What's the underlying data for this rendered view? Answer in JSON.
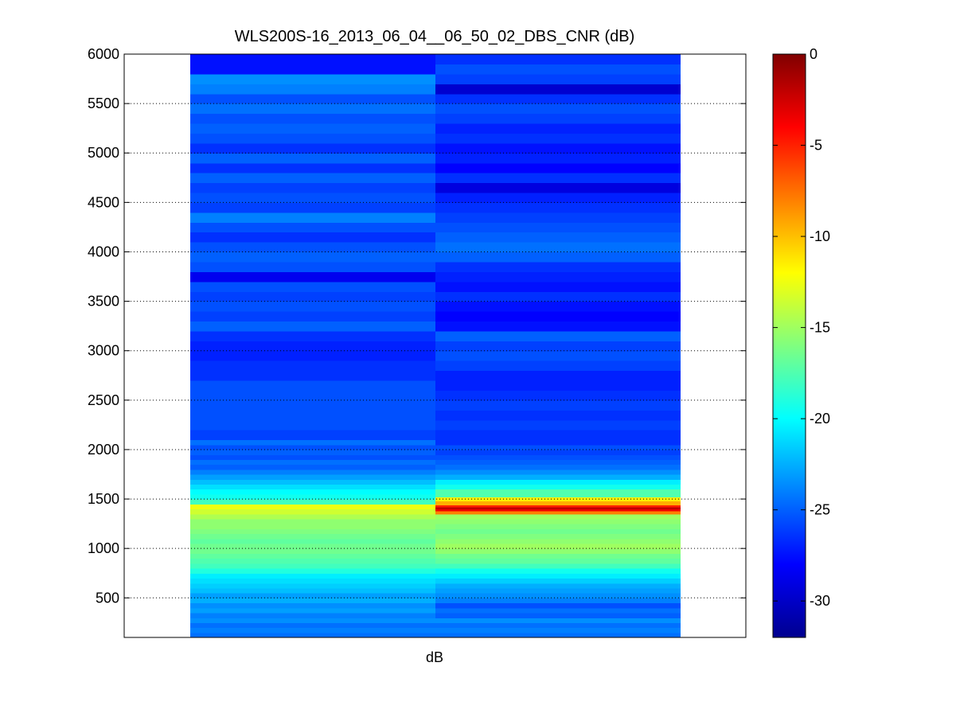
{
  "chart_data": {
    "type": "heatmap",
    "title": "WLS200S-16_2013_06_04__06_50_02_DBS_CNR (dB)",
    "xlabel": "dB",
    "ylabel": "",
    "ylim": [
      100,
      6000
    ],
    "yticks": [
      500,
      1000,
      1500,
      2000,
      2500,
      3000,
      3500,
      4000,
      4500,
      5000,
      5500,
      6000
    ],
    "grid": "horizontal dotted",
    "colormap": "jet",
    "colorbar": {
      "range": [
        -32,
        0
      ],
      "ticks": [
        0,
        -5,
        -10,
        -15,
        -20,
        -25,
        -30
      ],
      "placement": "right"
    },
    "columns": [
      {
        "cells": [
          [
            100,
            150,
            -24.5
          ],
          [
            150,
            200,
            -24.0
          ],
          [
            200,
            250,
            -24.5
          ],
          [
            250,
            300,
            -23.5
          ],
          [
            300,
            350,
            -24.0
          ],
          [
            350,
            400,
            -23.0
          ],
          [
            400,
            450,
            -23.5
          ],
          [
            450,
            500,
            -22.5
          ],
          [
            500,
            550,
            -23.0
          ],
          [
            550,
            600,
            -22.0
          ],
          [
            600,
            650,
            -21.5
          ],
          [
            650,
            700,
            -21.0
          ],
          [
            700,
            750,
            -20.5
          ],
          [
            750,
            800,
            -19.0
          ],
          [
            800,
            850,
            -18.0
          ],
          [
            850,
            900,
            -17.5
          ],
          [
            900,
            950,
            -17.0
          ],
          [
            950,
            1000,
            -16.5
          ],
          [
            1000,
            1050,
            -16.5
          ],
          [
            1050,
            1100,
            -17.0
          ],
          [
            1100,
            1150,
            -16.5
          ],
          [
            1150,
            1200,
            -16.0
          ],
          [
            1200,
            1250,
            -15.5
          ],
          [
            1250,
            1300,
            -15.5
          ],
          [
            1300,
            1350,
            -14.5
          ],
          [
            1350,
            1400,
            -13.5
          ],
          [
            1400,
            1450,
            -12.5
          ],
          [
            1450,
            1500,
            -18.0
          ],
          [
            1500,
            1550,
            -19.5
          ],
          [
            1550,
            1600,
            -20.0
          ],
          [
            1600,
            1650,
            -21.0
          ],
          [
            1650,
            1700,
            -22.0
          ],
          [
            1700,
            1750,
            -23.0
          ],
          [
            1750,
            1800,
            -24.0
          ],
          [
            1800,
            1850,
            -25.0
          ],
          [
            1850,
            1900,
            -24.5
          ],
          [
            1900,
            1950,
            -25.5
          ],
          [
            1950,
            2000,
            -25.0
          ],
          [
            2000,
            2050,
            -25.5
          ],
          [
            2050,
            2100,
            -24.5
          ],
          [
            2100,
            2200,
            -26.0
          ],
          [
            2200,
            2300,
            -25.5
          ],
          [
            2300,
            2400,
            -25.5
          ],
          [
            2400,
            2500,
            -25.5
          ],
          [
            2500,
            2600,
            -25.5
          ],
          [
            2600,
            2700,
            -25.5
          ],
          [
            2700,
            2800,
            -26.5
          ],
          [
            2800,
            2900,
            -26.5
          ],
          [
            2900,
            3000,
            -27.0
          ],
          [
            3000,
            3100,
            -27.0
          ],
          [
            3100,
            3200,
            -26.5
          ],
          [
            3200,
            3300,
            -25.0
          ],
          [
            3300,
            3400,
            -26.0
          ],
          [
            3400,
            3500,
            -25.5
          ],
          [
            3500,
            3600,
            -26.0
          ],
          [
            3600,
            3700,
            -25.5
          ],
          [
            3700,
            3800,
            -28.5
          ],
          [
            3800,
            3900,
            -25.5
          ],
          [
            3900,
            4000,
            -25.0
          ],
          [
            4000,
            4100,
            -25.5
          ],
          [
            4100,
            4200,
            -26.5
          ],
          [
            4200,
            4300,
            -25.5
          ],
          [
            4300,
            4400,
            -24.0
          ],
          [
            4400,
            4500,
            -26.0
          ],
          [
            4500,
            4600,
            -25.5
          ],
          [
            4600,
            4700,
            -26.0
          ],
          [
            4700,
            4800,
            -25.0
          ],
          [
            4800,
            4900,
            -26.5
          ],
          [
            4900,
            5000,
            -25.0
          ],
          [
            5000,
            5100,
            -26.5
          ],
          [
            5100,
            5200,
            -25.5
          ],
          [
            5200,
            5300,
            -25.0
          ],
          [
            5300,
            5400,
            -25.5
          ],
          [
            5400,
            5500,
            -24.5
          ],
          [
            5500,
            5600,
            -25.5
          ],
          [
            5600,
            5700,
            -24.0
          ],
          [
            5700,
            5800,
            -23.5
          ],
          [
            5800,
            6000,
            -27.5
          ]
        ]
      },
      {
        "cells": [
          [
            100,
            150,
            -24.5
          ],
          [
            150,
            200,
            -24.0
          ],
          [
            200,
            250,
            -24.5
          ],
          [
            250,
            300,
            -23.5
          ],
          [
            300,
            350,
            -25.0
          ],
          [
            350,
            400,
            -24.5
          ],
          [
            400,
            450,
            -25.5
          ],
          [
            450,
            500,
            -24.0
          ],
          [
            500,
            550,
            -23.5
          ],
          [
            550,
            600,
            -23.0
          ],
          [
            600,
            650,
            -22.5
          ],
          [
            650,
            700,
            -21.5
          ],
          [
            700,
            750,
            -20.5
          ],
          [
            750,
            800,
            -19.5
          ],
          [
            800,
            850,
            -18.0
          ],
          [
            850,
            900,
            -17.0
          ],
          [
            900,
            950,
            -16.5
          ],
          [
            950,
            1000,
            -15.5
          ],
          [
            1000,
            1050,
            -15.0
          ],
          [
            1050,
            1100,
            -15.5
          ],
          [
            1100,
            1150,
            -16.0
          ],
          [
            1150,
            1200,
            -16.5
          ],
          [
            1200,
            1250,
            -16.0
          ],
          [
            1250,
            1300,
            -15.5
          ],
          [
            1300,
            1350,
            -15.0
          ],
          [
            1350,
            1380,
            -8.0
          ],
          [
            1380,
            1400,
            -3.5
          ],
          [
            1400,
            1420,
            -2.0
          ],
          [
            1420,
            1440,
            -5.0
          ],
          [
            1440,
            1480,
            -9.5
          ],
          [
            1480,
            1520,
            -11.5
          ],
          [
            1520,
            1600,
            -17.5
          ],
          [
            1600,
            1650,
            -19.5
          ],
          [
            1650,
            1700,
            -20.5
          ],
          [
            1700,
            1750,
            -22.5
          ],
          [
            1750,
            1800,
            -23.5
          ],
          [
            1800,
            1850,
            -24.5
          ],
          [
            1850,
            1900,
            -25.0
          ],
          [
            1900,
            1950,
            -25.5
          ],
          [
            1950,
            2000,
            -26.0
          ],
          [
            2000,
            2050,
            -25.5
          ],
          [
            2050,
            2100,
            -26.5
          ],
          [
            2100,
            2200,
            -26.5
          ],
          [
            2200,
            2300,
            -26.0
          ],
          [
            2300,
            2400,
            -26.5
          ],
          [
            2400,
            2500,
            -26.0
          ],
          [
            2500,
            2600,
            -26.5
          ],
          [
            2600,
            2700,
            -27.0
          ],
          [
            2700,
            2800,
            -27.0
          ],
          [
            2800,
            2900,
            -26.0
          ],
          [
            2900,
            3000,
            -25.5
          ],
          [
            3000,
            3100,
            -26.0
          ],
          [
            3100,
            3200,
            -25.0
          ],
          [
            3200,
            3300,
            -27.5
          ],
          [
            3300,
            3400,
            -28.0
          ],
          [
            3400,
            3500,
            -27.5
          ],
          [
            3500,
            3600,
            -26.5
          ],
          [
            3600,
            3700,
            -27.5
          ],
          [
            3700,
            3800,
            -27.0
          ],
          [
            3800,
            3900,
            -26.5
          ],
          [
            3900,
            4000,
            -25.0
          ],
          [
            4000,
            4100,
            -24.5
          ],
          [
            4100,
            4200,
            -25.0
          ],
          [
            4200,
            4300,
            -25.5
          ],
          [
            4300,
            4400,
            -26.0
          ],
          [
            4400,
            4500,
            -26.5
          ],
          [
            4500,
            4600,
            -27.0
          ],
          [
            4600,
            4700,
            -29.0
          ],
          [
            4700,
            4800,
            -26.5
          ],
          [
            4800,
            4900,
            -28.0
          ],
          [
            4900,
            5000,
            -27.0
          ],
          [
            5000,
            5100,
            -27.5
          ],
          [
            5100,
            5200,
            -26.5
          ],
          [
            5200,
            5300,
            -27.0
          ],
          [
            5300,
            5400,
            -26.0
          ],
          [
            5400,
            5500,
            -25.5
          ],
          [
            5500,
            5600,
            -26.5
          ],
          [
            5600,
            5700,
            -29.5
          ],
          [
            5700,
            5800,
            -26.0
          ],
          [
            5800,
            5900,
            -25.5
          ],
          [
            5900,
            6000,
            -26.5
          ]
        ]
      }
    ]
  }
}
